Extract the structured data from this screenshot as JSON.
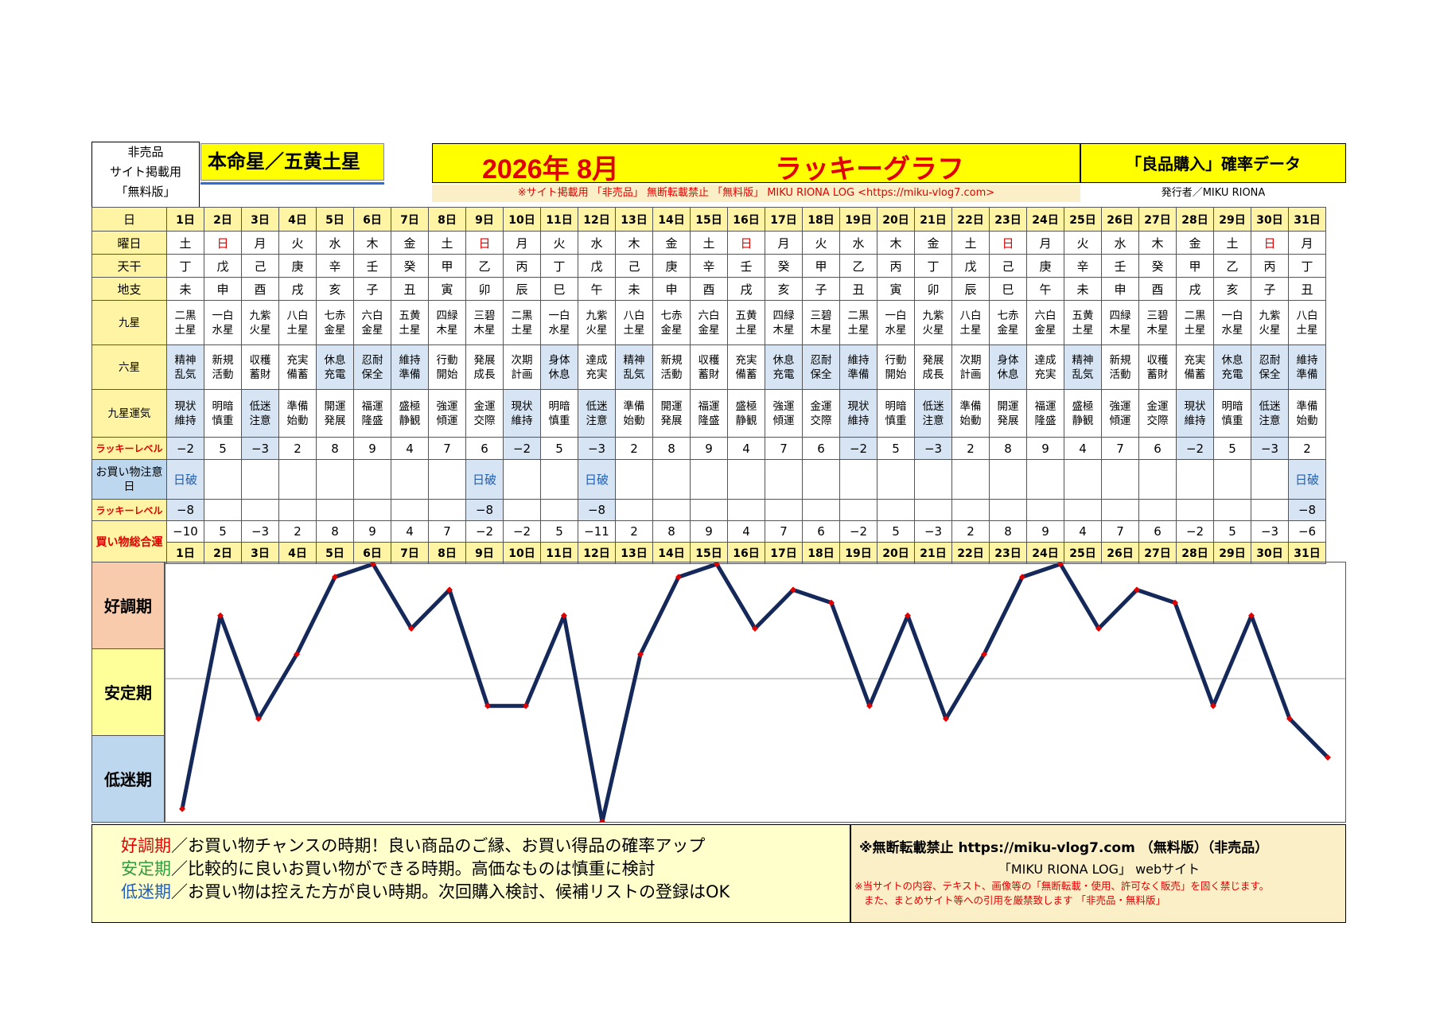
{
  "header": {
    "not_for_sale": [
      "非売品",
      "サイト掲載用",
      "「無料版」"
    ],
    "honmei": "本命星／五黄土星",
    "year_month": "2026年 8月",
    "graph_title": "ラッキーグラフ",
    "data_title": "「良品購入」確率データ",
    "notice": "※サイト掲載用 「非売品」 無断転載禁止 「無料版」 MIKU RIONA LOG <https://miku-vlog7.com>",
    "publisher": "発行者／MIKU RIONA"
  },
  "row_labels": {
    "day": "日",
    "weekday": "曜日",
    "kan": "天干",
    "shi": "地支",
    "kyusei": "九星",
    "rokusei": "六星",
    "unki": "九星運気",
    "lucky": "ラッキーレベル",
    "caution": "お買い物注意日",
    "lucky2": "ラッキーレベル",
    "total": "買い物総合運"
  },
  "days": [
    "1日",
    "2日",
    "3日",
    "4日",
    "5日",
    "6日",
    "7日",
    "8日",
    "9日",
    "10日",
    "11日",
    "12日",
    "13日",
    "14日",
    "15日",
    "16日",
    "17日",
    "18日",
    "19日",
    "20日",
    "21日",
    "22日",
    "23日",
    "24日",
    "25日",
    "26日",
    "27日",
    "28日",
    "29日",
    "30日",
    "31日"
  ],
  "weekdays": [
    "土",
    "日",
    "月",
    "火",
    "水",
    "木",
    "金",
    "土",
    "日",
    "月",
    "火",
    "水",
    "木",
    "金",
    "土",
    "日",
    "月",
    "火",
    "水",
    "木",
    "金",
    "土",
    "日",
    "月",
    "火",
    "水",
    "木",
    "金",
    "土",
    "日",
    "月"
  ],
  "kan": [
    "丁",
    "戊",
    "己",
    "庚",
    "辛",
    "壬",
    "癸",
    "甲",
    "乙",
    "丙",
    "丁",
    "戊",
    "己",
    "庚",
    "辛",
    "壬",
    "癸",
    "甲",
    "乙",
    "丙",
    "丁",
    "戊",
    "己",
    "庚",
    "辛",
    "壬",
    "癸",
    "甲",
    "乙",
    "丙",
    "丁"
  ],
  "shi": [
    "未",
    "申",
    "酉",
    "戌",
    "亥",
    "子",
    "丑",
    "寅",
    "卯",
    "辰",
    "巳",
    "午",
    "未",
    "申",
    "酉",
    "戌",
    "亥",
    "子",
    "丑",
    "寅",
    "卯",
    "辰",
    "巳",
    "午",
    "未",
    "申",
    "酉",
    "戌",
    "亥",
    "子",
    "丑"
  ],
  "kyusei": [
    [
      "二黒",
      "土星"
    ],
    [
      "一白",
      "水星"
    ],
    [
      "九紫",
      "火星"
    ],
    [
      "八白",
      "土星"
    ],
    [
      "七赤",
      "金星"
    ],
    [
      "六白",
      "金星"
    ],
    [
      "五黄",
      "土星"
    ],
    [
      "四緑",
      "木星"
    ],
    [
      "三碧",
      "木星"
    ],
    [
      "二黒",
      "土星"
    ],
    [
      "一白",
      "水星"
    ],
    [
      "九紫",
      "火星"
    ],
    [
      "八白",
      "土星"
    ],
    [
      "七赤",
      "金星"
    ],
    [
      "六白",
      "金星"
    ],
    [
      "五黄",
      "土星"
    ],
    [
      "四緑",
      "木星"
    ],
    [
      "三碧",
      "木星"
    ],
    [
      "二黒",
      "土星"
    ],
    [
      "一白",
      "水星"
    ],
    [
      "九紫",
      "火星"
    ],
    [
      "八白",
      "土星"
    ],
    [
      "七赤",
      "金星"
    ],
    [
      "六白",
      "金星"
    ],
    [
      "五黄",
      "土星"
    ],
    [
      "四緑",
      "木星"
    ],
    [
      "三碧",
      "木星"
    ],
    [
      "二黒",
      "土星"
    ],
    [
      "一白",
      "水星"
    ],
    [
      "九紫",
      "火星"
    ],
    [
      "八白",
      "土星"
    ]
  ],
  "rokusei": [
    [
      "精神",
      "乱気"
    ],
    [
      "新規",
      "活動"
    ],
    [
      "収穫",
      "蓄財"
    ],
    [
      "充実",
      "備蓄"
    ],
    [
      "休息",
      "充電"
    ],
    [
      "忍耐",
      "保全"
    ],
    [
      "維持",
      "準備"
    ],
    [
      "行動",
      "開始"
    ],
    [
      "発展",
      "成長"
    ],
    [
      "次期",
      "計画"
    ],
    [
      "身体",
      "休息"
    ],
    [
      "達成",
      "充実"
    ],
    [
      "精神",
      "乱気"
    ],
    [
      "新規",
      "活動"
    ],
    [
      "収穫",
      "蓄財"
    ],
    [
      "充実",
      "備蓄"
    ],
    [
      "休息",
      "充電"
    ],
    [
      "忍耐",
      "保全"
    ],
    [
      "維持",
      "準備"
    ],
    [
      "行動",
      "開始"
    ],
    [
      "発展",
      "成長"
    ],
    [
      "次期",
      "計画"
    ],
    [
      "身体",
      "休息"
    ],
    [
      "達成",
      "充実"
    ],
    [
      "精神",
      "乱気"
    ],
    [
      "新規",
      "活動"
    ],
    [
      "収穫",
      "蓄財"
    ],
    [
      "充実",
      "備蓄"
    ],
    [
      "休息",
      "充電"
    ],
    [
      "忍耐",
      "保全"
    ],
    [
      "維持",
      "準備"
    ]
  ],
  "rokusei_blue": [
    1,
    0,
    0,
    0,
    1,
    1,
    1,
    0,
    0,
    0,
    1,
    0,
    1,
    0,
    0,
    0,
    1,
    1,
    1,
    0,
    0,
    0,
    1,
    0,
    1,
    0,
    0,
    0,
    1,
    1,
    1
  ],
  "unki": [
    [
      "現状",
      "維持"
    ],
    [
      "明暗",
      "慎重"
    ],
    [
      "低迷",
      "注意"
    ],
    [
      "準備",
      "始動"
    ],
    [
      "開運",
      "発展"
    ],
    [
      "福運",
      "隆盛"
    ],
    [
      "盛極",
      "静観"
    ],
    [
      "強運",
      "傾運"
    ],
    [
      "金運",
      "交際"
    ],
    [
      "現状",
      "維持"
    ],
    [
      "明暗",
      "慎重"
    ],
    [
      "低迷",
      "注意"
    ],
    [
      "準備",
      "始動"
    ],
    [
      "開運",
      "発展"
    ],
    [
      "福運",
      "隆盛"
    ],
    [
      "盛極",
      "静観"
    ],
    [
      "強運",
      "傾運"
    ],
    [
      "金運",
      "交際"
    ],
    [
      "現状",
      "維持"
    ],
    [
      "明暗",
      "慎重"
    ],
    [
      "低迷",
      "注意"
    ],
    [
      "準備",
      "始動"
    ],
    [
      "開運",
      "発展"
    ],
    [
      "福運",
      "隆盛"
    ],
    [
      "盛極",
      "静観"
    ],
    [
      "強運",
      "傾運"
    ],
    [
      "金運",
      "交際"
    ],
    [
      "現状",
      "維持"
    ],
    [
      "明暗",
      "慎重"
    ],
    [
      "低迷",
      "注意"
    ],
    [
      "準備",
      "始動"
    ]
  ],
  "lucky": [
    "−2",
    "5",
    "−3",
    "2",
    "8",
    "9",
    "4",
    "7",
    "6",
    "−2",
    "5",
    "−3",
    "2",
    "8",
    "9",
    "4",
    "7",
    "6",
    "−2",
    "5",
    "−3",
    "2",
    "8",
    "9",
    "4",
    "7",
    "6",
    "−2",
    "5",
    "−3",
    "2"
  ],
  "caution": [
    "日破",
    "",
    "",
    "",
    "",
    "",
    "",
    "",
    "日破",
    "",
    "",
    "日破",
    "",
    "",
    "",
    "",
    "",
    "",
    "",
    "",
    "",
    "",
    "",
    "",
    "",
    "",
    "",
    "",
    "",
    "",
    "日破"
  ],
  "lucky2": [
    "−8",
    "",
    "",
    "",
    "",
    "",
    "",
    "",
    "−8",
    "",
    "",
    "−8",
    "",
    "",
    "",
    "",
    "",
    "",
    "",
    "",
    "",
    "",
    "",
    "",
    "",
    "",
    "",
    "",
    "",
    "",
    "−8"
  ],
  "total": [
    "−10",
    "5",
    "−3",
    "2",
    "8",
    "9",
    "4",
    "7",
    "−2",
    "−2",
    "5",
    "−11",
    "2",
    "8",
    "9",
    "4",
    "7",
    "6",
    "−2",
    "5",
    "−3",
    "2",
    "8",
    "9",
    "4",
    "7",
    "6",
    "−2",
    "5",
    "−3",
    "−6"
  ],
  "phases": [
    "好調期",
    "安定期",
    "低迷期"
  ],
  "legend": {
    "l1a": "好調期",
    "l1b": "／お買い物チャンスの時期！良い商品のご縁、お買い得品の確率アップ",
    "l2a": "安定期",
    "l2b": "／比較的に良いお買い物ができる時期。高価なものは慎重に検討",
    "l3a": "低迷期",
    "l3b": "／お買い物は控えた方が良い時期。次回購入検討、候補リストの登録はOK"
  },
  "copyright": {
    "line1": "※無断転載禁止 https://miku-vlog7.com （無料版）（非売品）",
    "line2": "「MIKU RIONA LOG」 webサイト",
    "line3": "※当サイトの内容、テキスト、画像等の「無断転載・使用、許可なく販売」を固く禁じます。",
    "line4": "また、まとめサイト等への引用を厳禁致します 「非売品・無料版」"
  },
  "chart_data": {
    "type": "line",
    "x": [
      1,
      2,
      3,
      4,
      5,
      6,
      7,
      8,
      9,
      10,
      11,
      12,
      13,
      14,
      15,
      16,
      17,
      18,
      19,
      20,
      21,
      22,
      23,
      24,
      25,
      26,
      27,
      28,
      29,
      30,
      31
    ],
    "values": [
      -10,
      5,
      -3,
      2,
      8,
      9,
      4,
      7,
      -2,
      -2,
      5,
      -11,
      2,
      8,
      9,
      4,
      7,
      6,
      -2,
      5,
      -3,
      2,
      8,
      9,
      4,
      7,
      6,
      -2,
      5,
      -3,
      -6
    ],
    "ylim": [
      -11,
      9
    ],
    "colors": {
      "line": "#14285a",
      "marker": "#e00000",
      "good": "#f8cbad",
      "stable": "#ffff99",
      "low": "#bdd7ee"
    }
  }
}
